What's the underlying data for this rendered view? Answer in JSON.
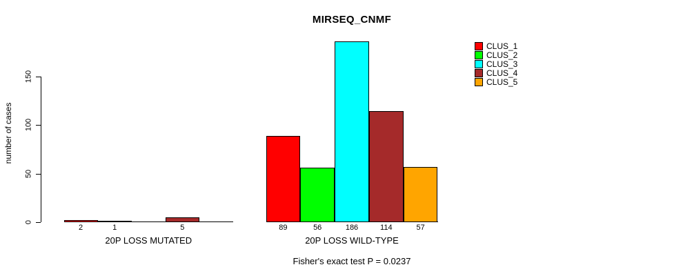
{
  "chart_data": {
    "type": "bar",
    "title": "MIRSEQ_CNMF",
    "ylabel": "number of cases",
    "xlabel": "",
    "yticks": [
      0,
      50,
      100,
      150
    ],
    "ylim": [
      0,
      190
    ],
    "grid": false,
    "legend_position": "top-right",
    "series": [
      {
        "name": "CLUS_1",
        "color": "#FF0000"
      },
      {
        "name": "CLUS_2",
        "color": "#00FF00"
      },
      {
        "name": "CLUS_3",
        "color": "#00FFFF"
      },
      {
        "name": "CLUS_4",
        "color": "#A52A2A"
      },
      {
        "name": "CLUS_5",
        "color": "#FFA500"
      }
    ],
    "groups": [
      {
        "label": "20P LOSS MUTATED",
        "values": [
          2,
          1,
          0,
          5,
          0
        ],
        "value_labels": [
          "2",
          "1",
          "",
          "5",
          ""
        ]
      },
      {
        "label": "20P LOSS WILD-TYPE",
        "values": [
          89,
          56,
          186,
          114,
          57
        ],
        "value_labels": [
          "89",
          "56",
          "186",
          "114",
          "57"
        ]
      }
    ],
    "footnote": "Fisher's exact test P = 0.0237"
  }
}
